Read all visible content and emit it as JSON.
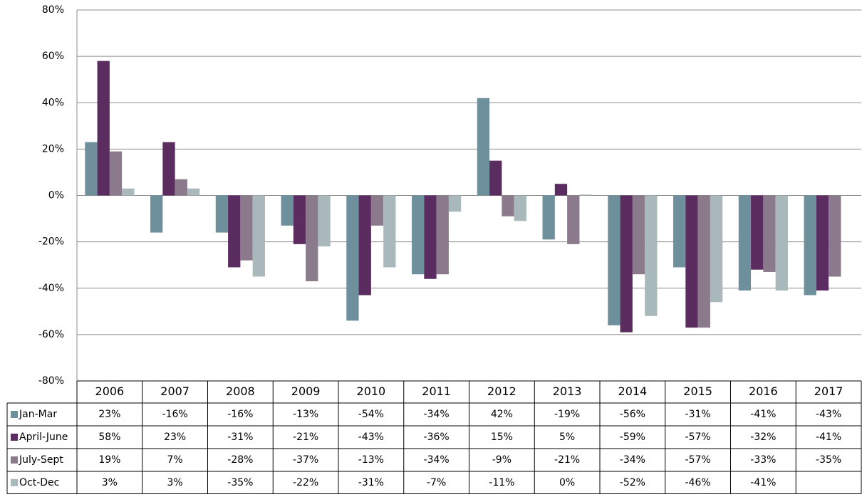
{
  "chart_data": {
    "type": "bar",
    "categories": [
      "2006",
      "2007",
      "2008",
      "2009",
      "2010",
      "2011",
      "2012",
      "2013",
      "2014",
      "2015",
      "2016",
      "2017"
    ],
    "series": [
      {
        "name": "Jan-Mar",
        "color": "#6e8f9c",
        "values": [
          23,
          -16,
          -16,
          -13,
          -54,
          -34,
          42,
          -19,
          -56,
          -31,
          -41,
          -43
        ],
        "value_labels": [
          "23%",
          "-16%",
          "-16%",
          "-13%",
          "-54%",
          "-34%",
          "42%",
          "-19%",
          "-56%",
          "-31%",
          "-41%",
          "-43%"
        ]
      },
      {
        "name": "April-June",
        "color": "#5b2c5f",
        "values": [
          58,
          23,
          -31,
          -21,
          -43,
          -36,
          15,
          5,
          -59,
          -57,
          -32,
          -41
        ],
        "value_labels": [
          "58%",
          "23%",
          "-31%",
          "-21%",
          "-43%",
          "-36%",
          "15%",
          "5%",
          "-59%",
          "-57%",
          "-32%",
          "-41%"
        ]
      },
      {
        "name": "July-Sept",
        "color": "#8a7a8c",
        "values": [
          19,
          7,
          -28,
          -37,
          -13,
          -34,
          -9,
          -21,
          -34,
          -57,
          -33,
          -35
        ],
        "value_labels": [
          "19%",
          "7%",
          "-28%",
          "-37%",
          "-13%",
          "-34%",
          "-9%",
          "-21%",
          "-34%",
          "-57%",
          "-33%",
          "-35%"
        ]
      },
      {
        "name": "Oct-Dec",
        "color": "#a9b8bb",
        "values": [
          3,
          3,
          -35,
          -22,
          -31,
          -7,
          -11,
          0.4,
          -52,
          -46,
          -41,
          null
        ],
        "value_labels": [
          "3%",
          "3%",
          "-35%",
          "-22%",
          "-31%",
          "-7%",
          "-11%",
          "0%",
          "-52%",
          "-46%",
          "-41%",
          null
        ]
      }
    ],
    "ylim": [
      -80,
      80
    ],
    "yticks": [
      {
        "value": -80,
        "label": "-80%"
      },
      {
        "value": -60,
        "label": "-60%"
      },
      {
        "value": -40,
        "label": "-40%"
      },
      {
        "value": -20,
        "label": "-20%"
      },
      {
        "value": 0,
        "label": "0%"
      },
      {
        "value": 20,
        "label": "20%"
      },
      {
        "value": 40,
        "label": "40%"
      },
      {
        "value": 60,
        "label": "60%"
      },
      {
        "value": 80,
        "label": "80%"
      }
    ],
    "grid": true
  }
}
